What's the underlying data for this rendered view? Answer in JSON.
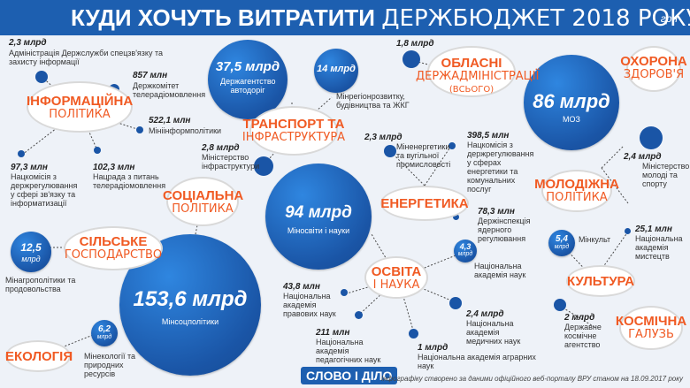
{
  "header": {
    "title_bold": "КУДИ ХОЧУТЬ ВИТРАТИТИ",
    "title_light": "ДЕРЖБЮДЖЕТ 2018 РОКУ",
    "currency": "грн"
  },
  "categories": {
    "info": {
      "bold": "ІНФОРМАЦІЙНА",
      "light": "ПОЛІТИКА"
    },
    "transport": {
      "bold": "ТРАНСПОРТ ТА",
      "light": "ІНФРАСТРУКТУРА"
    },
    "oblast": {
      "bold": "ОБЛАСНІ",
      "light": "ДЕРЖАДМІНІСТРАЦІЇ",
      "sub": "(ВСЬОГО)"
    },
    "health": {
      "bold": "ОХОРОНА",
      "light": "ЗДОРОВ'Я"
    },
    "social": {
      "bold": "СОЦІАЛЬНА",
      "light": "ПОЛІТИКА"
    },
    "energy": {
      "bold": "ЕНЕРГЕТИКА"
    },
    "youth": {
      "bold": "МОЛОДІЖНА",
      "light": "ПОЛІТИКА"
    },
    "agro": {
      "bold": "СІЛЬСЬКЕ",
      "light": "ГОСПОДАРСТВО"
    },
    "education": {
      "bold": "ОСВІТА",
      "light": "І НАУКА"
    },
    "culture": {
      "bold": "КУЛЬТУРА"
    },
    "ecology": {
      "bold": "ЕКОЛОГІЯ"
    },
    "space": {
      "bold": "КОСМІЧНА",
      "light": "ГАЛУЗЬ"
    }
  },
  "bubbles": {
    "transport": {
      "amount": "37,5 млрд",
      "label": "Держагентство автодоріг"
    },
    "minregion": {
      "amount": "14 млрд"
    },
    "moz": {
      "amount": "86 млрд",
      "label": "МОЗ"
    },
    "mon": {
      "amount": "94 млрд",
      "label": "Міносвіти і науки"
    },
    "minsoc": {
      "amount": "153,6 млрд",
      "label": "Мінсоцполітики"
    },
    "agro": {
      "amount": "12,5",
      "unit": "млрд"
    },
    "nan": {
      "amount": "4,3",
      "unit": "млрд"
    },
    "culture": {
      "amount": "5,4",
      "unit": "млрд"
    },
    "ecology": {
      "amount": "6,2",
      "unit": "млрд"
    }
  },
  "items": {
    "i1": {
      "amount": "2,3 млрд",
      "desc": "Адміністрація Держслужби спецзв'язку та захисту інформації"
    },
    "i2": {
      "amount": "857 млн",
      "desc": "Держкомітет телерадіомовлення"
    },
    "i3": {
      "amount": "522,1 млн",
      "desc": "Мініінформполітики"
    },
    "i4": {
      "amount": "97,3 млн",
      "desc": "Нацкомісія з держрегулювання у сфері зв'язку та інформатизації"
    },
    "i5": {
      "amount": "102,3 млн",
      "desc": "Нацрада з питань телерадіомовлення"
    },
    "t1": {
      "amount": "2,8 млрд",
      "desc": "Міністерство інфраструктури"
    },
    "t2": {
      "desc": "Мінрегіонрозвитку, будівництва та ЖКГ"
    },
    "o1": {
      "amount": "1,8 млрд"
    },
    "e1": {
      "amount": "2,3 млрд",
      "desc": "Міненергетики та вугільної промисловості"
    },
    "e2": {
      "amount": "398,5 млн",
      "desc": "Нацкомісія з держрегулювання у сферах енергетики та комунальних послуг"
    },
    "e3": {
      "amount": "78,3 млн",
      "desc": "Держінспекція ядерного регулювання"
    },
    "y1": {
      "amount": "2,4 млрд",
      "desc": "Міністерство молоді та спорту"
    },
    "a1": {
      "desc": "Мінагрополітики та продовольства"
    },
    "n1": {
      "desc": "Національна академія наук"
    },
    "c1": {
      "desc": "Мінкульт"
    },
    "c2": {
      "amount": "25,1 млн",
      "desc": "Національна академія мистецтв"
    },
    "ed1": {
      "amount": "43,8 млн",
      "desc": "Національна академія правових наук"
    },
    "ed2": {
      "amount": "2,4 млрд",
      "desc": "Національна академія медичних наук"
    },
    "ed3": {
      "amount": "211 млн",
      "desc": "Національна академія педагогічних наук"
    },
    "ed4": {
      "amount": "1 млрд",
      "desc": "Національна академія аграрних наук"
    },
    "ec1": {
      "desc": "Мінекології та природних ресурсів"
    },
    "s1": {
      "amount": "2 млрд",
      "desc": "Державне космічне агентство"
    }
  },
  "footer": {
    "logo": "СЛОВО І ДІЛО",
    "source": "Інфографіку створено за даними офіційного веб-порталу ВРУ станом на 18.09.2017 року"
  }
}
